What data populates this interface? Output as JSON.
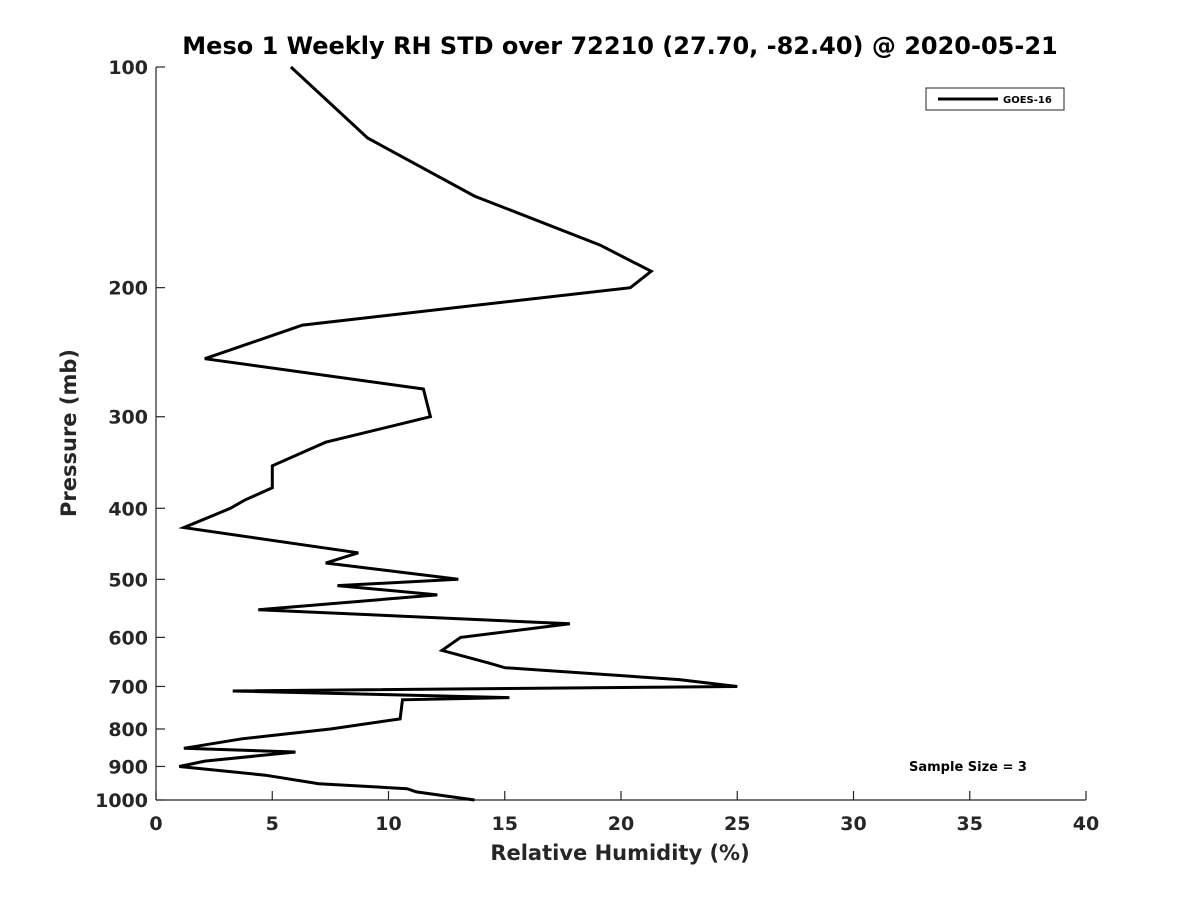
{
  "chart_data": {
    "type": "line",
    "title": "Meso 1 Weekly RH STD over 72210 (27.70, -82.40) @ 2020-05-21",
    "xlabel": "Relative Humidity (%)",
    "ylabel": "Pressure (mb)",
    "xlim": [
      0,
      40
    ],
    "ylim": [
      100,
      1000
    ],
    "y_scale": "log",
    "y_reversed": true,
    "x_ticks": [
      0,
      5,
      10,
      15,
      20,
      25,
      30,
      35,
      40
    ],
    "y_ticks": [
      100,
      200,
      300,
      400,
      500,
      600,
      700,
      800,
      900,
      1000
    ],
    "legend": {
      "position": "top-right",
      "entries": [
        "GOES-16"
      ]
    },
    "annotation": "Sample Size = 3",
    "series": [
      {
        "name": "GOES-16",
        "color": "#000000",
        "points": [
          [
            5.8,
            100
          ],
          [
            9.1,
            125
          ],
          [
            13.7,
            150
          ],
          [
            19.1,
            175
          ],
          [
            21.3,
            190
          ],
          [
            20.4,
            200
          ],
          [
            6.3,
            225
          ],
          [
            2.1,
            250
          ],
          [
            11.5,
            275
          ],
          [
            11.8,
            300
          ],
          [
            7.3,
            325
          ],
          [
            5.0,
            350
          ],
          [
            5.0,
            375
          ],
          [
            3.8,
            390
          ],
          [
            3.2,
            400
          ],
          [
            1.2,
            425
          ],
          [
            8.7,
            460
          ],
          [
            7.3,
            475
          ],
          [
            13.0,
            500
          ],
          [
            7.8,
            510
          ],
          [
            12.1,
            525
          ],
          [
            4.4,
            550
          ],
          [
            17.8,
            575
          ],
          [
            13.1,
            600
          ],
          [
            12.3,
            625
          ],
          [
            14.3,
            650
          ],
          [
            15.0,
            660
          ],
          [
            22.5,
            685
          ],
          [
            25.0,
            700
          ],
          [
            3.3,
            710
          ],
          [
            15.2,
            725
          ],
          [
            10.6,
            730
          ],
          [
            10.5,
            775
          ],
          [
            7.5,
            800
          ],
          [
            3.7,
            825
          ],
          [
            1.2,
            850
          ],
          [
            6.0,
            860
          ],
          [
            2.1,
            885
          ],
          [
            1.0,
            900
          ],
          [
            4.7,
            925
          ],
          [
            7.0,
            950
          ],
          [
            10.8,
            965
          ],
          [
            11.2,
            975
          ],
          [
            13.7,
            1000
          ]
        ]
      }
    ]
  }
}
